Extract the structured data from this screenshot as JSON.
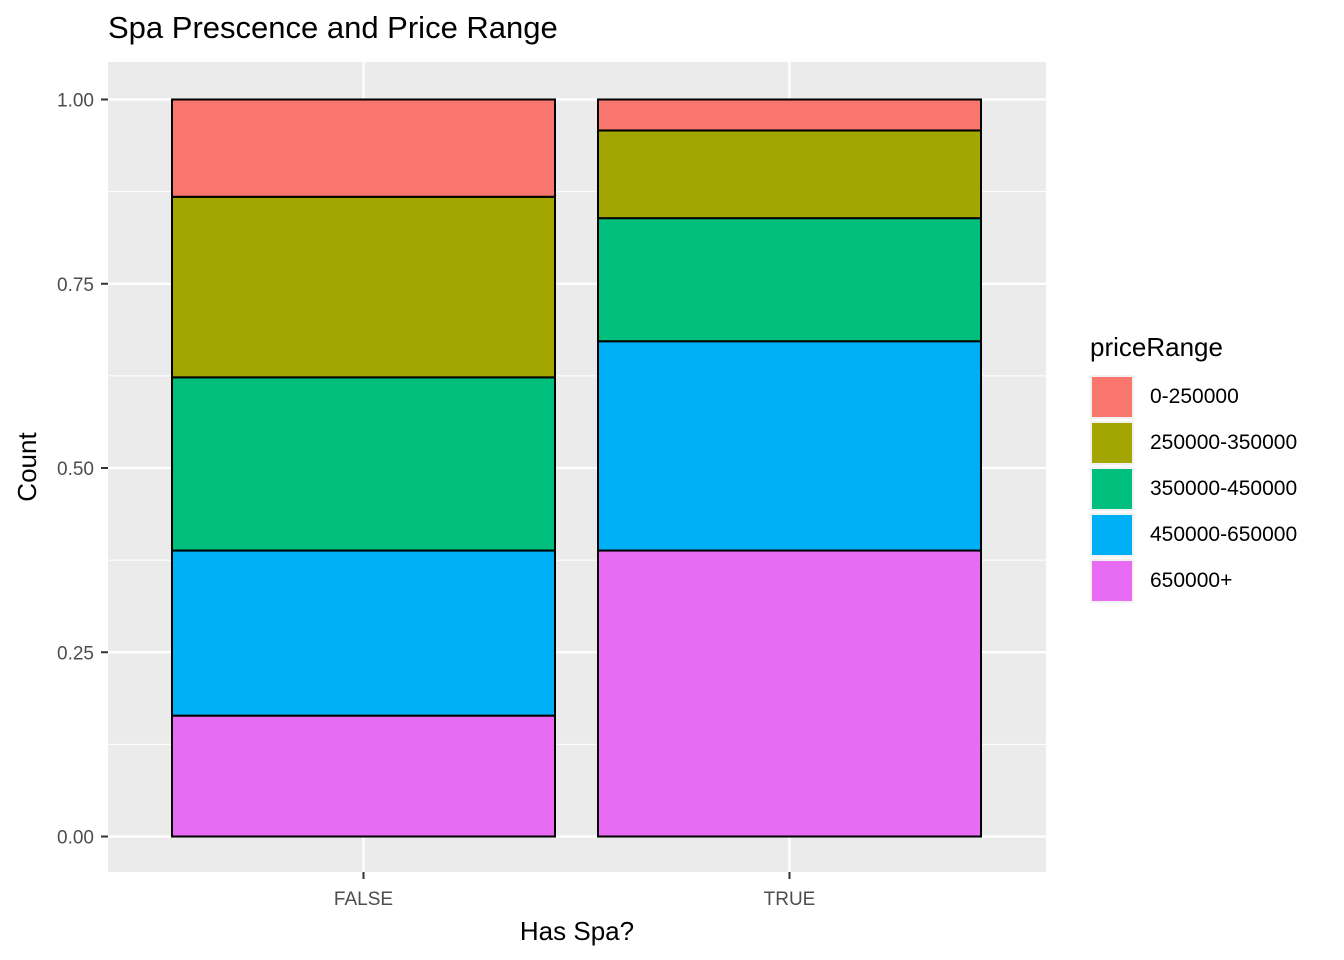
{
  "chart_data": {
    "type": "bar",
    "stacked": true,
    "title": "Spa Prescence and Price Range",
    "xlabel": "Has Spa?",
    "ylabel": "Count",
    "categories": [
      "FALSE",
      "TRUE"
    ],
    "ylim": [
      0,
      1
    ],
    "yticks": [
      "0.00",
      "0.25",
      "0.50",
      "0.75",
      "1.00"
    ],
    "ytick_values": [
      0,
      0.25,
      0.5,
      0.75,
      1.0
    ],
    "grid": true,
    "legend_title": "priceRange",
    "legend_position": "right",
    "series": [
      {
        "name": "650000+",
        "color": "#E76BF3",
        "values": [
          0.164,
          0.388
        ]
      },
      {
        "name": "450000-650000",
        "color": "#00B0F6",
        "values": [
          0.224,
          0.284
        ]
      },
      {
        "name": "350000-450000",
        "color": "#00BF7D",
        "values": [
          0.235,
          0.167
        ]
      },
      {
        "name": "250000-350000",
        "color": "#A3A500",
        "values": [
          0.245,
          0.119
        ]
      },
      {
        "name": "0-250000",
        "color": "#F8766D",
        "values": [
          0.132,
          0.042
        ]
      }
    ],
    "legend_order": [
      "0-250000",
      "250000-350000",
      "350000-450000",
      "450000-650000",
      "650000+"
    ],
    "legend_colors": [
      "#F8766D",
      "#A3A500",
      "#00BF7D",
      "#00B0F6",
      "#E76BF3"
    ]
  }
}
